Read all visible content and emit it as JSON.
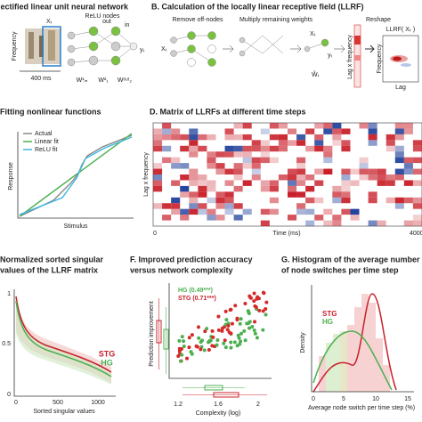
{
  "panels": {
    "a": {
      "title": "Rectified linear unit neural network",
      "relu": "ReLU nodes",
      "frequency": "Frequency",
      "input": "Xₜ",
      "duration": "400 ms",
      "out": "out",
      "in": "in",
      "weights": [
        "W¹ᵢₙ",
        "W²₁",
        "Wᵒᵘᵗ₂"
      ],
      "output": "yₜ"
    },
    "b": {
      "title": "B. Calculation of the locally linear receptive field (LLRF)",
      "steps": [
        "Remove off-nodes",
        "Multiply remaining weights",
        "Reshape"
      ],
      "input": "Xₜ",
      "output": "yₜ",
      "weight": "Ŵₜ",
      "lagfreq": "Lag x frequency",
      "llrf": "LLRF( Xₜ )",
      "frequency": "Frequency",
      "lag": "Lag"
    },
    "c": {
      "title": "Fitting nonlinear functions",
      "legend": [
        "Actual",
        "Linear fit",
        "ReLU fit"
      ],
      "ylabel": "Response",
      "xlabel": "Stimulus"
    },
    "d": {
      "title": "D. Matrix of LLRFs at different time steps",
      "ylabel": "Lag x frequency",
      "xstart": "0",
      "xlabel": "Time (ms)",
      "xend": "4000"
    },
    "e": {
      "title": [
        "Normalized sorted singular",
        "values of the LLRF matrix"
      ],
      "yticks": [
        "1",
        "0.5",
        "0"
      ],
      "xticks": [
        "0",
        "500",
        "1000"
      ],
      "xlabel": "Sorted singular values",
      "stg": "STG",
      "hg": "HG"
    },
    "f": {
      "title": [
        "F. Improved prediction accuracy",
        "versus network complexity"
      ],
      "hg": "HG (0.49***)",
      "stg": "STG (0.71***)",
      "ylabel": "Prediction improvement",
      "xticks": [
        "1.2",
        "1.6",
        "2"
      ],
      "xlabel": "Complexity (log)"
    },
    "g": {
      "title": [
        "G. Histogram of the average number",
        "of node switches per time step"
      ],
      "ylabel": "Density",
      "stg": "STG",
      "hg": "HG",
      "xticks": [
        "0",
        "5",
        "10",
        "15"
      ],
      "xlabel": "Average node switch per time step (%)"
    }
  }
}
